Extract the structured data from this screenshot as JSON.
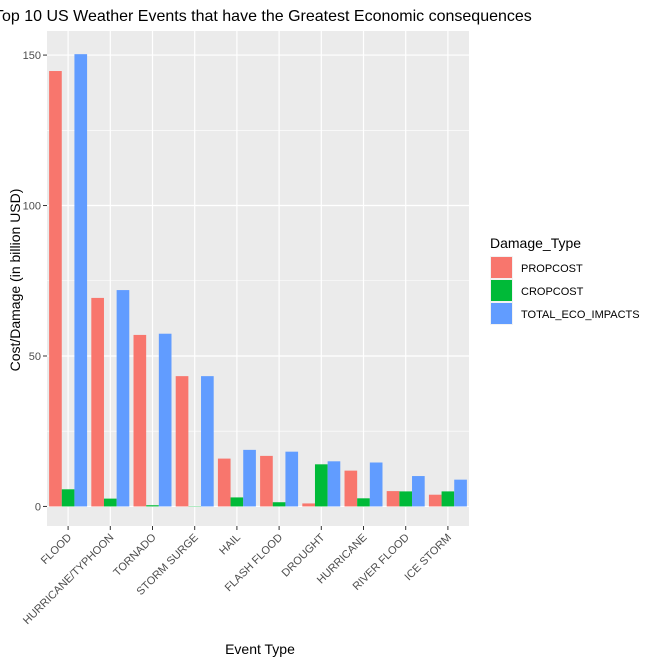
{
  "chart_data": {
    "type": "bar",
    "title": "Top 10 US Weather Events that have the Greatest Economic consequences",
    "xlabel": "Event Type",
    "ylabel": "Cost/Damage (in billion USD)",
    "categories": [
      "FLOOD",
      "HURRICANE/TYPHOON",
      "TORNADO",
      "STORM SURGE",
      "HAIL",
      "FLASH FLOOD",
      "DROUGHT",
      "HURRICANE",
      "RIVER FLOOD",
      "ICE STORM"
    ],
    "series": [
      {
        "name": "PROPCOST",
        "color": "#F8766D",
        "values": [
          144.7,
          69.3,
          57.0,
          43.3,
          15.9,
          16.8,
          1.0,
          11.9,
          5.1,
          3.9
        ]
      },
      {
        "name": "CROPCOST",
        "color": "#00BA38",
        "values": [
          5.7,
          2.6,
          0.4,
          0.0,
          3.0,
          1.4,
          14.0,
          2.7,
          5.0,
          5.0
        ]
      },
      {
        "name": "TOTAL_ECO_IMPACTS",
        "color": "#619CFF",
        "values": [
          150.3,
          71.9,
          57.4,
          43.3,
          18.8,
          18.2,
          15.0,
          14.6,
          10.1,
          8.9
        ]
      }
    ],
    "ylim": [
      -6.5,
      158
    ],
    "yticks": [
      0,
      50,
      100,
      150
    ],
    "legend": {
      "title": "Damage_Type",
      "position": "right"
    },
    "grid": true,
    "panel_color": "#EBEBEB",
    "grid_color": "#FFFFFF"
  }
}
